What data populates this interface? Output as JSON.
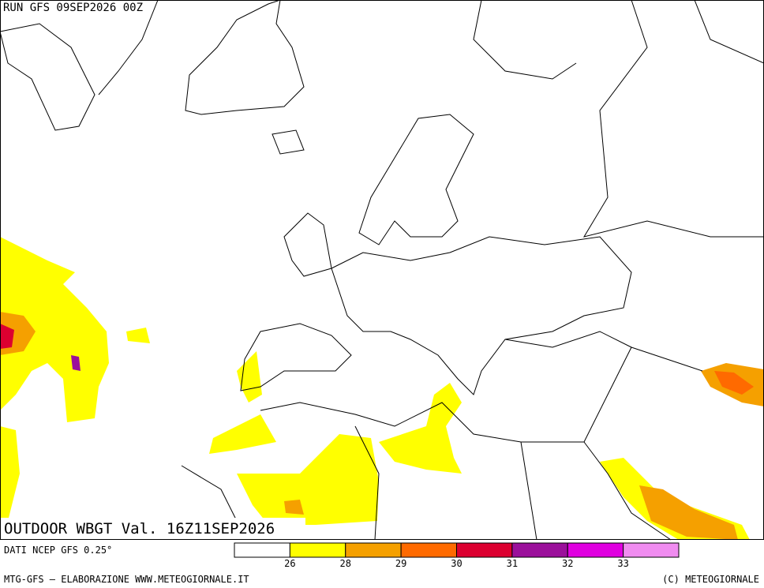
{
  "header": {
    "run": "RUN GFS 09SEP2026 00Z"
  },
  "map_title": "OUTDOOR WBGT Val. 16Z11SEP2026",
  "source": "DATI NCEP GFS 0.25°",
  "footer": {
    "left": "MTG-GFS — ELABORAZIONE WWW.METEOGIORNALE.IT",
    "right": "(C) METEOGIORNALE"
  },
  "colorbar": {
    "colors": [
      "#ffffff",
      "#ffff00",
      "#f5a000",
      "#ff6a00",
      "#dc0030",
      "#9b109b",
      "#e000e0",
      "#f08cf0"
    ],
    "ticks": [
      26,
      28,
      29,
      30,
      31,
      32,
      33
    ]
  }
}
